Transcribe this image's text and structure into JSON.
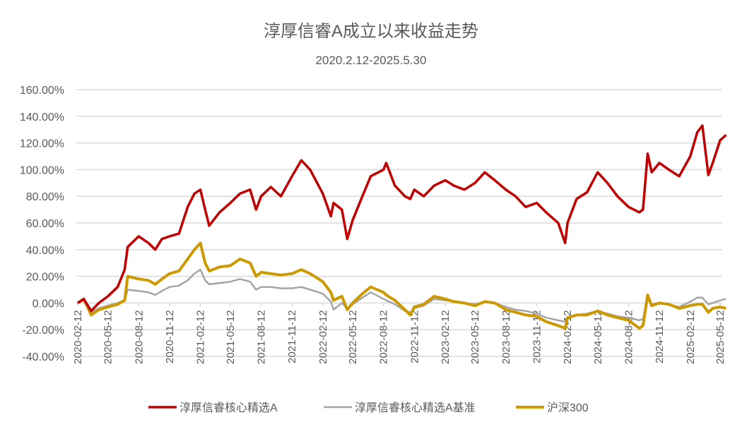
{
  "chart_data": {
    "type": "line",
    "title": "淳厚信睿A成立以来收益走势",
    "subtitle": "2020.2.12-2025.5.30",
    "xlabel": "",
    "ylabel": "",
    "ylim": [
      -40,
      160
    ],
    "yticks": [
      "160.00%",
      "140.00%",
      "120.00%",
      "100.00%",
      "80.00%",
      "60.00%",
      "40.00%",
      "20.00%",
      "0.00%",
      "-20.00%",
      "-40.00%"
    ],
    "ytick_values": [
      160,
      140,
      120,
      100,
      80,
      60,
      40,
      20,
      0,
      -20,
      -40
    ],
    "xticks": [
      "2020-02-12",
      "2020-05-12",
      "2020-08-12",
      "2020-11-12",
      "2021-02-12",
      "2021-05-12",
      "2021-08-12",
      "2021-11-12",
      "2022-02-12",
      "2022-05-12",
      "2022-08-12",
      "2022-11-12",
      "2023-02-12",
      "2023-05-12",
      "2023-08-12",
      "2023-11-12",
      "2024-02-12",
      "2024-05-12",
      "2024-08-12",
      "2024-11-12",
      "2025-02-12",
      "2025-05-12"
    ],
    "grid": true,
    "legend_position": "bottom",
    "x": [
      "2020-02-12",
      "2020-03-01",
      "2020-03-23",
      "2020-04-15",
      "2020-05-12",
      "2020-06-10",
      "2020-07-01",
      "2020-07-10",
      "2020-08-12",
      "2020-09-10",
      "2020-09-30",
      "2020-10-20",
      "2020-11-12",
      "2020-12-10",
      "2021-01-05",
      "2021-01-25",
      "2021-02-12",
      "2021-02-26",
      "2021-03-10",
      "2021-04-10",
      "2021-05-12",
      "2021-06-10",
      "2021-07-10",
      "2021-07-28",
      "2021-08-12",
      "2021-09-10",
      "2021-10-10",
      "2021-11-12",
      "2021-12-10",
      "2022-01-05",
      "2022-02-12",
      "2022-03-08",
      "2022-03-16",
      "2022-04-10",
      "2022-04-26",
      "2022-05-12",
      "2022-06-10",
      "2022-07-05",
      "2022-08-12",
      "2022-08-20",
      "2022-09-15",
      "2022-10-15",
      "2022-10-31",
      "2022-11-12",
      "2022-12-10",
      "2023-01-10",
      "2023-02-12",
      "2023-03-10",
      "2023-04-10",
      "2023-05-12",
      "2023-06-10",
      "2023-07-10",
      "2023-08-12",
      "2023-09-10",
      "2023-10-10",
      "2023-11-12",
      "2023-12-10",
      "2024-01-15",
      "2024-02-05",
      "2024-02-12",
      "2024-03-10",
      "2024-04-10",
      "2024-05-12",
      "2024-06-10",
      "2024-07-10",
      "2024-08-12",
      "2024-09-13",
      "2024-09-24",
      "2024-10-08",
      "2024-10-20",
      "2024-11-12",
      "2024-12-10",
      "2025-01-10",
      "2025-02-12",
      "2025-03-05",
      "2025-03-20",
      "2025-04-07",
      "2025-04-20",
      "2025-05-12",
      "2025-05-30"
    ],
    "series": [
      {
        "name": "淳厚信睿核心精选A",
        "color": "#C00000",
        "values": [
          0,
          3,
          -6,
          0,
          5,
          12,
          25,
          42,
          50,
          45,
          40,
          48,
          50,
          52,
          72,
          82,
          85,
          70,
          58,
          68,
          75,
          82,
          85,
          70,
          80,
          87,
          80,
          95,
          107,
          100,
          82,
          65,
          75,
          70,
          48,
          62,
          80,
          95,
          100,
          105,
          88,
          80,
          78,
          85,
          80,
          88,
          92,
          88,
          85,
          90,
          98,
          92,
          85,
          80,
          72,
          75,
          68,
          60,
          45,
          60,
          78,
          83,
          98,
          90,
          80,
          72,
          68,
          70,
          112,
          98,
          105,
          100,
          95,
          110,
          128,
          133,
          96,
          105,
          122,
          126
        ]
      },
      {
        "name": "淳厚信睿核心精选A基准",
        "color": "#A5A5A5",
        "values": [
          0,
          2,
          -7,
          -4,
          -2,
          0,
          2,
          10,
          9,
          8,
          6,
          9,
          12,
          13,
          17,
          22,
          25,
          17,
          14,
          15,
          16,
          18,
          16,
          10,
          12,
          12,
          11,
          11,
          12,
          10,
          7,
          1,
          -5,
          0,
          -4,
          -1,
          4,
          8,
          3,
          2,
          -1,
          -6,
          -7,
          -4,
          -2,
          3,
          2,
          1,
          0,
          -1,
          1,
          0,
          -3,
          -5,
          -6,
          -8,
          -11,
          -13,
          -14,
          -11,
          -9,
          -8,
          -6,
          -8,
          -10,
          -11,
          -13,
          -12,
          3,
          -1,
          0,
          -1,
          -3,
          1,
          4,
          4,
          -1,
          0,
          2,
          3
        ]
      },
      {
        "name": "沪深300",
        "color": "#CC9900",
        "values": [
          0,
          3,
          -9,
          -5,
          -3,
          -1,
          2,
          20,
          18,
          17,
          14,
          18,
          22,
          24,
          33,
          40,
          45,
          30,
          24,
          27,
          28,
          33,
          30,
          20,
          23,
          22,
          21,
          22,
          25,
          22,
          16,
          8,
          2,
          5,
          -5,
          0,
          7,
          12,
          8,
          6,
          2,
          -5,
          -9,
          -3,
          -1,
          5,
          3,
          1,
          0,
          -2,
          1,
          0,
          -5,
          -7,
          -9,
          -10,
          -14,
          -17,
          -19,
          -11,
          -9,
          -9,
          -6,
          -9,
          -11,
          -13,
          -19,
          -17,
          6,
          -2,
          0,
          -1,
          -4,
          -2,
          -1,
          -1,
          -7,
          -4,
          -3,
          -4
        ]
      }
    ]
  }
}
